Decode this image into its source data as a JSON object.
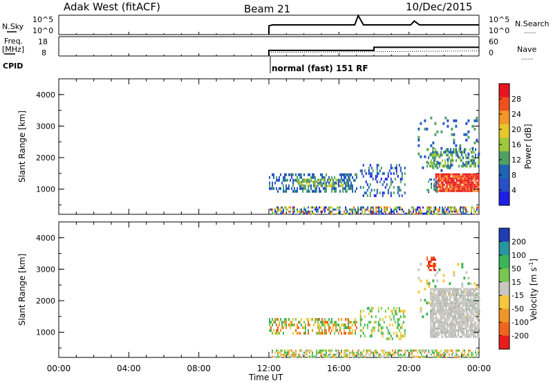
{
  "header": {
    "station": "Adak West (fitACF)",
    "beam": "Beam 21",
    "date": "10/Dec/2015"
  },
  "params": {
    "nsky_label": "N.Sky",
    "freq_label_top": "Freq.",
    "freq_label_bottom": "[MHz]",
    "cpid_label": "CPID",
    "nsearch_label": "N.Search",
    "nave_label": "Nave",
    "nsky_ticks": [
      "10^5",
      "10^0"
    ],
    "nsearch_ticks": [
      "10^5",
      "10^0"
    ],
    "freq_ticks": [
      "18",
      "8"
    ],
    "nave_ticks": [
      "60",
      "0"
    ],
    "cpid_text": "normal (fast) 151 RF",
    "dotted_legend": "......"
  },
  "power_panel": {
    "ylabel": "Slant Range [km]",
    "colorbar_label": "Power [dB]",
    "colorbar_ticks": [
      "28",
      "24",
      "20",
      "16",
      "12",
      "8",
      "4"
    ],
    "colorbar_colors": [
      "#e8141e",
      "#f0501e",
      "#f59628",
      "#e6c828",
      "#a0c83c",
      "#50a064",
      "#1e64b4",
      "#2850c8",
      "#1e1ee6"
    ]
  },
  "velocity_panel": {
    "ylabel": "Slant Range [km]",
    "colorbar_label_main": "Velocity [m s",
    "colorbar_label_sup": "-1",
    "colorbar_label_end": "]",
    "colorbar_ticks": [
      "200",
      "100",
      "50",
      "15",
      "-15",
      "-50",
      "-100",
      "-200"
    ],
    "colorbar_colors": [
      "#1e3cb4",
      "#2896a0",
      "#3cb45a",
      "#78c850",
      "#c8c8c0",
      "#f5c83c",
      "#f09628",
      "#f0641e",
      "#e81e1e"
    ]
  },
  "x_axis": {
    "label": "Time UT",
    "tick_labels": [
      "00:00",
      "04:00",
      "08:00",
      "12:00",
      "16:00",
      "20:00",
      "00:00"
    ]
  },
  "chart_data": {
    "type": "heatmap",
    "title": "Adak West (fitACF)",
    "subtitle": "Beam 21 · 10/Dec/2015",
    "xlabel": "Time UT",
    "ylabel": "Slant Range [km]",
    "xlim_hours": [
      0,
      24
    ],
    "ylim_km": [
      200,
      4500
    ],
    "yticks_km": [
      1000,
      2000,
      3000,
      4000
    ],
    "xticks_hours": [
      0,
      4,
      8,
      12,
      16,
      20,
      24
    ],
    "params": {
      "nsky": {
        "x_hours": [
          12.0,
          12.2,
          16.9,
          17.1,
          17.4,
          20.1,
          20.3,
          20.6,
          24.0
        ],
        "y_frac": [
          0.45,
          0.5,
          0.5,
          0.98,
          0.5,
          0.5,
          0.7,
          0.5,
          0.5
        ]
      },
      "freq_mhz": {
        "x_hours": [
          12.0,
          18.0,
          24.0
        ],
        "y": [
          10.2,
          11.0,
          11.0
        ]
      },
      "nave": {
        "x_hours": [
          12.0,
          24.0
        ],
        "y": [
          10,
          10
        ]
      }
    },
    "power": {
      "units": "dB",
      "colorbar_ticks": [
        28,
        24,
        20,
        16,
        12,
        8,
        4
      ],
      "regions": [
        {
          "t": [
            12.0,
            24.0
          ],
          "r": [
            200,
            450
          ],
          "level": "mixed"
        },
        {
          "t": [
            12.0,
            17.0
          ],
          "r": [
            900,
            1500
          ],
          "level": 10
        },
        {
          "t": [
            13.5,
            16.2
          ],
          "r": [
            1050,
            1350
          ],
          "level": 16
        },
        {
          "t": [
            17.2,
            19.8
          ],
          "r": [
            800,
            1800
          ],
          "level": 8
        },
        {
          "t": [
            20.5,
            24.0
          ],
          "r": [
            1500,
            3400
          ],
          "level": 8
        },
        {
          "t": [
            21.0,
            24.0
          ],
          "r": [
            800,
            1700
          ],
          "level": 28
        }
      ]
    },
    "velocity": {
      "units": "m s^-1",
      "colorbar_ticks": [
        200,
        100,
        50,
        15,
        -15,
        -50,
        -100,
        -200
      ],
      "regions": [
        {
          "t": [
            12.0,
            24.0
          ],
          "r": [
            200,
            450
          ],
          "level": "mixed"
        },
        {
          "t": [
            12.0,
            17.0
          ],
          "r": [
            900,
            1500
          ],
          "level": -50
        },
        {
          "t": [
            17.2,
            19.8
          ],
          "r": [
            800,
            1800
          ],
          "level": 50
        },
        {
          "t": [
            21.0,
            24.0
          ],
          "r": [
            800,
            2600
          ],
          "level": 0
        },
        {
          "t": [
            21.0,
            21.5
          ],
          "r": [
            3000,
            3400
          ],
          "level": -200
        }
      ]
    }
  }
}
